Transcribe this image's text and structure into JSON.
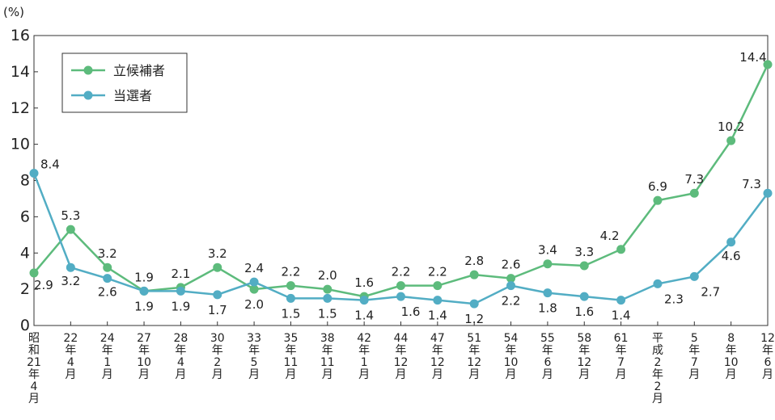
{
  "chart_data": {
    "type": "line",
    "unit_label": "(%)",
    "categories": [
      "昭和21年4月",
      "22年4月",
      "24年1月",
      "27年10月",
      "28年4月",
      "30年2月",
      "33年5月",
      "35年11月",
      "38年11月",
      "42年1月",
      "44年12月",
      "47年12月",
      "51年12月",
      "54年10月",
      "55年6月",
      "58年12月",
      "61年7月",
      "平成2年2月",
      "5年7月",
      "8年10月",
      "12年6月"
    ],
    "series": [
      {
        "name": "立候補者",
        "color": "#5dbb7c",
        "values": [
          2.9,
          5.3,
          3.2,
          1.9,
          2.1,
          3.2,
          2.0,
          2.2,
          2.0,
          1.6,
          2.2,
          2.2,
          2.8,
          2.6,
          3.4,
          3.3,
          4.2,
          6.9,
          7.3,
          10.2,
          14.4
        ],
        "labels": [
          "2.9",
          "5.3",
          "3.2",
          "1.9",
          "2.1",
          "3.2",
          "2.0",
          "2.2",
          "2.0",
          "1.6",
          "2.2",
          "2.2",
          "2.8",
          "2.6",
          "3.4",
          "3.3",
          "4.2",
          "6.9",
          "7.3",
          "10.2",
          "14.4"
        ]
      },
      {
        "name": "当選者",
        "color": "#52adc4",
        "values": [
          8.4,
          3.2,
          2.6,
          1.9,
          1.9,
          1.7,
          2.4,
          1.5,
          1.5,
          1.4,
          1.6,
          1.4,
          1.2,
          2.2,
          1.8,
          1.6,
          1.4,
          2.3,
          2.7,
          4.6,
          7.3
        ],
        "labels": [
          "8.4",
          "3.2",
          "2.6",
          "1.9",
          "1.9",
          "1.7",
          "2.4",
          "1.5",
          "1.5",
          "1.4",
          "1.6",
          "1.4",
          "1.2",
          "2.2",
          "1.8",
          "1.6",
          "1.4",
          "2.3",
          "2.7",
          "4.6",
          "7.3"
        ]
      }
    ],
    "ylim": [
      0,
      16
    ],
    "yticks": [
      0,
      2,
      4,
      6,
      8,
      10,
      12,
      14,
      16
    ],
    "grid": false,
    "legend_position": "top-left"
  }
}
